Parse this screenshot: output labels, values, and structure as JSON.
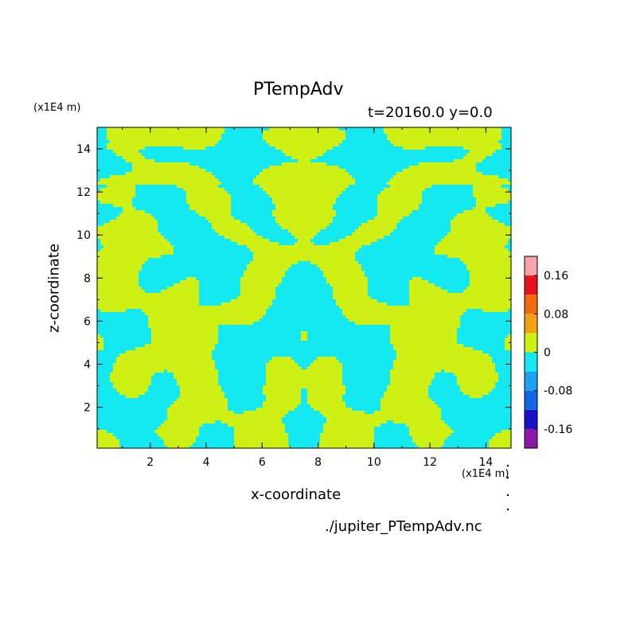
{
  "chart_data": {
    "type": "heatmap",
    "title": "PTempAdv",
    "subtitle": "t=20160.0 y=0.0",
    "xlabel": "x-coordinate",
    "ylabel": "z-coordinate",
    "x_unit": "(x1E4 m)",
    "y_unit": "(x1E4 m)",
    "xlim": [
      0.1,
      14.9
    ],
    "ylim": [
      0.1,
      15.0
    ],
    "x_ticks": [
      2,
      4,
      6,
      8,
      10,
      12,
      14
    ],
    "y_ticks": [
      2,
      4,
      6,
      8,
      10,
      12,
      14
    ],
    "colorbar": {
      "levels": [
        -0.2,
        -0.16,
        -0.12,
        -0.08,
        -0.04,
        0,
        0.04,
        0.08,
        0.12,
        0.16,
        0.2
      ],
      "colors": [
        "#8e19a6",
        "#1a10c8",
        "#1366e6",
        "#1ea1f3",
        "#14e8f0",
        "#cef015",
        "#f0a012",
        "#f06a10",
        "#e6121e",
        "#f5a5aa"
      ],
      "tick_labels": [
        "0.16",
        "0.08",
        "0",
        "-0.08",
        "-0.16"
      ],
      "tick_values": [
        0.16,
        0.08,
        0,
        -0.08,
        -0.16
      ]
    },
    "field_summary": "mirror-symmetric about x=7.5; values alternate between the -0.04–0 band (cyan) and the 0–0.04 band (yellow-green)",
    "source_file": "./jupiter_PTempAdv.nc"
  }
}
